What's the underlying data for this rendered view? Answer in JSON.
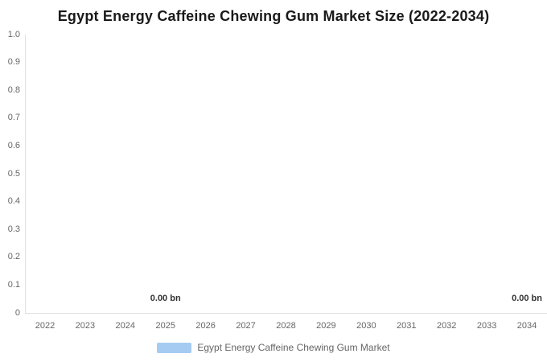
{
  "chart": {
    "colors": {
      "series": "#a6cbf2",
      "axis_line": "#e0e0e0",
      "tick_label": "#666666",
      "title": "#1a1a1a",
      "data_label": "#333333",
      "legend_text": "#666666",
      "background": "#ffffff"
    }
  },
  "chart_data": {
    "type": "bar",
    "title": "Egypt Energy Caffeine Chewing Gum Market Size (2022-2034)",
    "categories": [
      "2022",
      "2023",
      "2024",
      "2025",
      "2026",
      "2027",
      "2028",
      "2029",
      "2030",
      "2031",
      "2032",
      "2033",
      "2034"
    ],
    "series": [
      {
        "name": "Egypt Energy Caffeine Chewing Gum Market",
        "color": "#a6cbf2",
        "values": [
          0,
          0,
          0,
          0,
          0,
          0,
          0,
          0,
          0,
          0,
          0,
          0,
          0
        ]
      }
    ],
    "data_labels": [
      {
        "category": "2025",
        "text": "0.00 bn"
      },
      {
        "category": "2034",
        "text": "0.00 bn"
      }
    ],
    "xlabel": "",
    "ylabel": "",
    "ylim": [
      0,
      1.0
    ],
    "ytick_step": 0.1,
    "yticks": [
      "1.0",
      "0.9",
      "0.8",
      "0.7",
      "0.6",
      "0.5",
      "0.4",
      "0.3",
      "0.2",
      "0.1",
      "0"
    ],
    "grid": false,
    "legend_position": "bottom",
    "unit": "bn"
  },
  "legend": {
    "items": [
      {
        "label": "Egypt Energy Caffeine Chewing Gum Market",
        "swatch_color": "#a6cbf2"
      }
    ]
  }
}
